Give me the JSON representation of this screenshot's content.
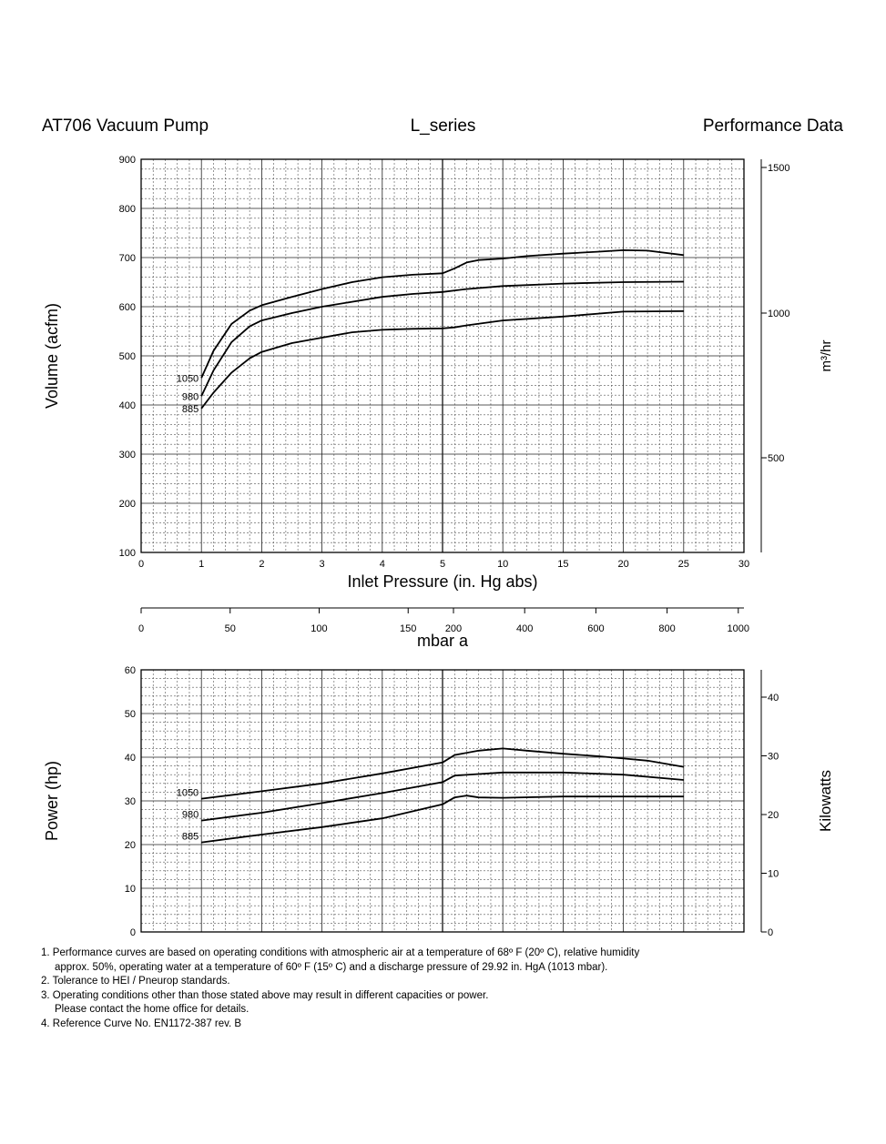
{
  "header": {
    "left": "AT706 Vacuum Pump",
    "center": "L_series",
    "right": "Performance Data"
  },
  "chart_data": [
    {
      "type": "line",
      "ylabel": "Volume (acfm)",
      "ylabel_right": "m³/hr",
      "xlabel": "Inlet Pressure (in. Hg abs)",
      "x_scale": "piecewise: linear 0–5, linear 5–30 (compressed)",
      "x_ticks": [
        "0",
        "1",
        "2",
        "3",
        "4",
        "5",
        "10",
        "15",
        "20",
        "25",
        "30"
      ],
      "y_ticks": [
        "100",
        "200",
        "300",
        "400",
        "500",
        "600",
        "700",
        "800",
        "900"
      ],
      "y_right_ticks": [
        "1500",
        "1000",
        "500"
      ],
      "ylim": [
        100,
        900
      ],
      "grid": true,
      "series": [
        {
          "name": "1050",
          "points": [
            [
              1,
              455
            ],
            [
              1.2,
              510
            ],
            [
              1.5,
              565
            ],
            [
              1.8,
              592
            ],
            [
              2,
              603
            ],
            [
              2.5,
              620
            ],
            [
              3,
              636
            ],
            [
              3.5,
              650
            ],
            [
              4,
              660
            ],
            [
              4.5,
              665
            ],
            [
              5,
              668
            ],
            [
              6,
              678
            ],
            [
              7,
              690
            ],
            [
              8,
              695
            ],
            [
              10,
              698
            ],
            [
              12,
              703
            ],
            [
              15,
              708
            ],
            [
              18,
              712
            ],
            [
              20,
              715
            ],
            [
              22,
              714
            ],
            [
              25,
              705
            ]
          ]
        },
        {
          "name": "980",
          "points": [
            [
              1,
              418
            ],
            [
              1.2,
              470
            ],
            [
              1.5,
              528
            ],
            [
              1.8,
              560
            ],
            [
              2,
              572
            ],
            [
              2.5,
              587
            ],
            [
              3,
              600
            ],
            [
              3.5,
              610
            ],
            [
              4,
              620
            ],
            [
              4.5,
              626
            ],
            [
              5,
              630
            ],
            [
              7,
              636
            ],
            [
              10,
              642
            ],
            [
              15,
              647
            ],
            [
              20,
              650
            ],
            [
              25,
              651
            ]
          ]
        },
        {
          "name": "885",
          "points": [
            [
              1,
              393
            ],
            [
              1.2,
              425
            ],
            [
              1.5,
              466
            ],
            [
              1.8,
              495
            ],
            [
              2,
              508
            ],
            [
              2.5,
              526
            ],
            [
              3,
              537
            ],
            [
              3.5,
              548
            ],
            [
              4,
              553
            ],
            [
              4.5,
              555
            ],
            [
              5,
              556
            ],
            [
              6,
              558
            ],
            [
              7,
              562
            ],
            [
              10,
              572
            ],
            [
              15,
              580
            ],
            [
              20,
              590
            ],
            [
              25,
              591
            ]
          ]
        }
      ]
    },
    {
      "type": "line",
      "xlabel": "mbar a",
      "x_ticks": [
        "0",
        "50",
        "100",
        "150",
        "200",
        "400",
        "600",
        "800",
        "1000"
      ]
    },
    {
      "type": "line",
      "ylabel": "Power (hp)",
      "ylabel_right": "Kilowatts",
      "y_ticks": [
        "0",
        "10",
        "20",
        "30",
        "40",
        "50",
        "60"
      ],
      "y_right_ticks": [
        "40",
        "30",
        "20",
        "10",
        "0"
      ],
      "ylim": [
        0,
        60
      ],
      "grid": true,
      "series": [
        {
          "name": "1050",
          "points": [
            [
              1,
              30.5
            ],
            [
              2,
              32.2
            ],
            [
              3,
              34.0
            ],
            [
              4,
              36.3
            ],
            [
              5,
              38.8
            ],
            [
              6,
              40.5
            ],
            [
              8,
              41.5
            ],
            [
              10,
              42.0
            ],
            [
              12,
              41.5
            ],
            [
              15,
              40.8
            ],
            [
              18,
              40.2
            ],
            [
              20,
              39.7
            ],
            [
              22,
              39.2
            ],
            [
              25,
              37.8
            ]
          ]
        },
        {
          "name": "980",
          "points": [
            [
              1,
              25.5
            ],
            [
              2,
              27.3
            ],
            [
              3,
              29.5
            ],
            [
              4,
              31.8
            ],
            [
              5,
              34.3
            ],
            [
              6,
              35.8
            ],
            [
              10,
              36.5
            ],
            [
              15,
              36.5
            ],
            [
              20,
              36.0
            ],
            [
              25,
              34.8
            ]
          ]
        },
        {
          "name": "885",
          "points": [
            [
              1,
              20.5
            ],
            [
              2,
              22.3
            ],
            [
              3,
              24.0
            ],
            [
              4,
              26.0
            ],
            [
              5,
              29.2
            ],
            [
              6,
              30.8
            ],
            [
              7,
              31.2
            ],
            [
              8,
              30.8
            ],
            [
              10,
              30.7
            ],
            [
              15,
              31.0
            ],
            [
              20,
              31.0
            ],
            [
              25,
              31.0
            ]
          ]
        }
      ]
    }
  ],
  "notes": {
    "n1a": "1. Performance curves are based on operating conditions with atmospheric air at  a temperature of 68º F (20º C), relative humidity",
    "n1b": "approx. 50%, operating water at  a temperature of 60º F (15º C)  and a discharge pressure of 29.92 in. HgA (1013 mbar).",
    "n2": "2. Tolerance to HEI / Pneurop standards.",
    "n3a": "3. Operating conditions other than those stated above may result in different capacities or power.",
    "n3b": "Please contact the home office for details.",
    "n4": "4. Reference Curve No. EN1172-387 rev. B"
  }
}
